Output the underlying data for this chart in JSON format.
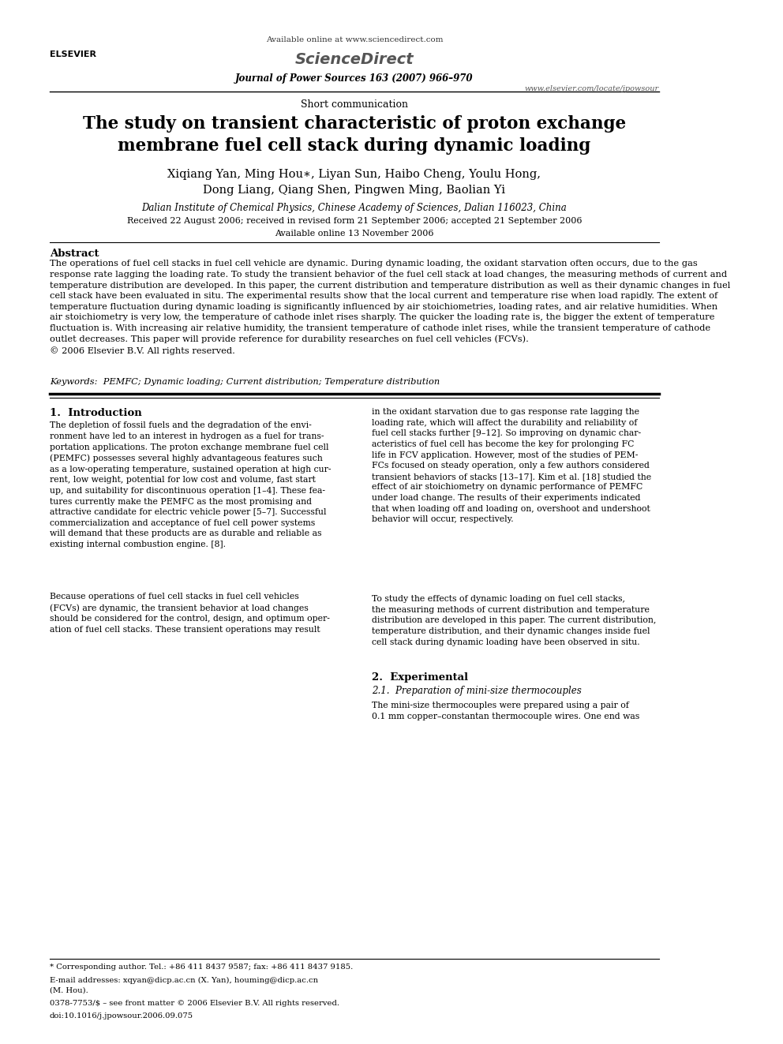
{
  "page_width": 9.92,
  "page_height": 13.23,
  "bg_color": "#ffffff",
  "header": {
    "available_online": "Available online at www.sciencedirect.com",
    "journal_line": "Journal of Power Sources 163 (2007) 966–970",
    "website": "www.elsevier.com/locate/jpowsour"
  },
  "section_label": "Short communication",
  "title": "The study on transient characteristic of proton exchange\nmembrane fuel cell stack during dynamic loading",
  "authors": "Xiqiang Yan, Ming Hou∗, Liyan Sun, Haibo Cheng, Youlu Hong,\nDong Liang, Qiang Shen, Pingwen Ming, Baolian Yi",
  "affiliation": "Dalian Institute of Chemical Physics, Chinese Academy of Sciences, Dalian 116023, China",
  "received": "Received 22 August 2006; received in revised form 21 September 2006; accepted 21 September 2006",
  "available_online2": "Available online 13 November 2006",
  "abstract_title": "Abstract",
  "abstract_text": "The operations of fuel cell stacks in fuel cell vehicle are dynamic. During dynamic loading, the oxidant starvation often occurs, due to the gas\nresponse rate lagging the loading rate. To study the transient behavior of the fuel cell stack at load changes, the measuring methods of current and\ntemperature distribution are developed. In this paper, the current distribution and temperature distribution as well as their dynamic changes in fuel\ncell stack have been evaluated in situ. The experimental results show that the local current and temperature rise when load rapidly. The extent of\ntemperature fluctuation during dynamic loading is significantly influenced by air stoichiometries, loading rates, and air relative humidities. When\nair stoichiometry is very low, the temperature of cathode inlet rises sharply. The quicker the loading rate is, the bigger the extent of temperature\nfluctuation is. With increasing air relative humidity, the transient temperature of cathode inlet rises, while the transient temperature of cathode\noutlet decreases. This paper will provide reference for durability researches on fuel cell vehicles (FCVs).\n© 2006 Elsevier B.V. All rights reserved.",
  "keywords": "Keywords:  PEMFC; Dynamic loading; Current distribution; Temperature distribution",
  "section1_title": "1.  Introduction",
  "intro_col1_p1": "The depletion of fossil fuels and the degradation of the envi-\nronment have led to an interest in hydrogen as a fuel for trans-\nportation applications. The proton exchange membrane fuel cell\n(PEMFC) possesses several highly advantageous features such\nas a low-operating temperature, sustained operation at high cur-\nrent, low weight, potential for low cost and volume, fast start\nup, and suitability for discontinuous operation [1–4]. These fea-\ntures currently make the PEMFC as the most promising and\nattractive candidate for electric vehicle power [5–7]. Successful\ncommercialization and acceptance of fuel cell power systems\nwill demand that these products are as durable and reliable as\nexisting internal combustion engine. [8].",
  "intro_col1_p2": "Because operations of fuel cell stacks in fuel cell vehicles\n(FCVs) are dynamic, the transient behavior at load changes\nshould be considered for the control, design, and optimum oper-\nation of fuel cell stacks. These transient operations may result",
  "intro_col2_p1": "in the oxidant starvation due to gas response rate lagging the\nloading rate, which will affect the durability and reliability of\nfuel cell stacks further [9–12]. So improving on dynamic char-\nacteristics of fuel cell has become the key for prolonging FC\nlife in FCV application. However, most of the studies of PEM-\nFCs focused on steady operation, only a few authors considered\ntransient behaviors of stacks [13–17]. Kim et al. [18] studied the\neffect of air stoichiometry on dynamic performance of PEMFC\nunder load change. The results of their experiments indicated\nthat when loading off and loading on, overshoot and undershoot\nbehavior will occur, respectively.",
  "intro_col2_p2": "To study the effects of dynamic loading on fuel cell stacks,\nthe measuring methods of current distribution and temperature\ndistribution are developed in this paper. The current distribution,\ntemperature distribution, and their dynamic changes inside fuel\ncell stack during dynamic loading have been observed in situ.",
  "section2_title": "2.  Experimental",
  "section21_title": "2.1.  Preparation of mini-size thermocouples",
  "section21_text": "The mini-size thermocouples were prepared using a pair of\n0.1 mm copper–constantan thermocouple wires. One end was",
  "footnote_star": "* Corresponding author. Tel.: +86 411 8437 9587; fax: +86 411 8437 9185.",
  "footnote_email": "E-mail addresses: xqyan@dicp.ac.cn (X. Yan), houming@dicp.ac.cn\n(M. Hou).",
  "footnote_issn": "0378-7753/$ – see front matter © 2006 Elsevier B.V. All rights reserved.",
  "footnote_doi": "doi:10.1016/j.jpowsour.2006.09.075"
}
